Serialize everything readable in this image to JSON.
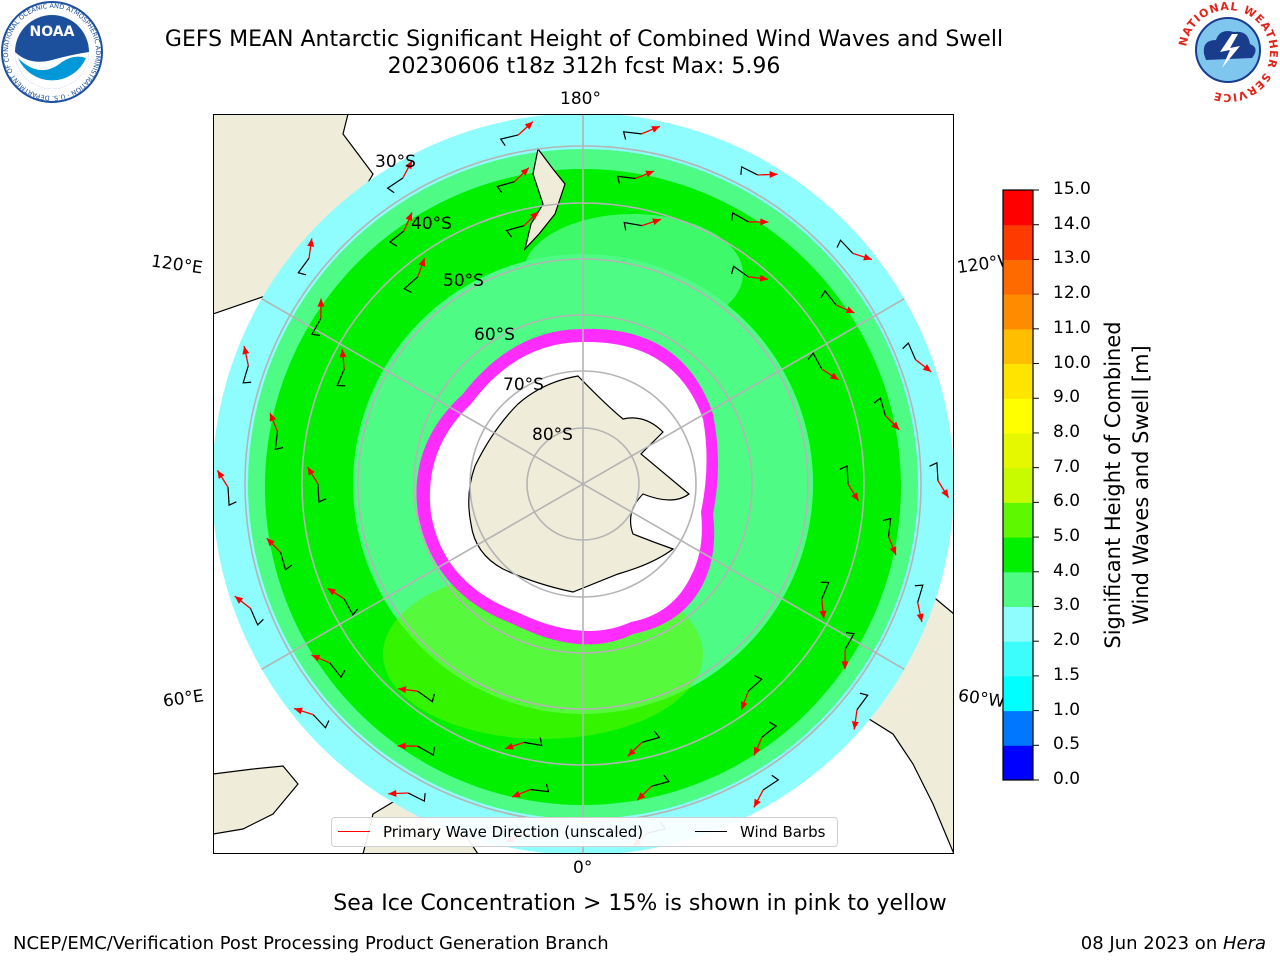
{
  "header": {
    "title_line1": "GEFS MEAN Antarctic Significant Height of Combined Wind Waves and Swell",
    "title_line2": "20230606 t18z 312h fcst   Max: 5.96"
  },
  "logos": {
    "left": {
      "text": "NOAA",
      "ring_text": "NATIONAL OCEANIC AND ATMOSPHERIC ADMINISTRATION · U.S. DEPARTMENT OF COMMERCE",
      "color": "#1c4f9c"
    },
    "right": {
      "ring_text": "NATIONAL WEATHER SERVICE",
      "color": "#e2231a"
    }
  },
  "map": {
    "lon_labels": [
      "180°",
      "120°E",
      "120°W",
      "60°E",
      "60°W",
      "0°"
    ],
    "lat_labels": [
      "30°S",
      "40°S",
      "50°S",
      "60°S",
      "70°S",
      "80°S"
    ],
    "colors": {
      "land": "#efecda",
      "ocean_low": "#8ffdfd",
      "ocean_mid": "#4dfb85",
      "ocean_high": "#00f000",
      "band_6": "#5ef800",
      "ice": "#ff2cff",
      "graticule": "#b4b4b4",
      "arrow": "#ff0000",
      "barb": "#000000"
    }
  },
  "colorbar": {
    "title_line1": "Significant Height of Combined",
    "title_line2": "Wind Waves and Swell [m]",
    "ticks": [
      "0.0",
      "0.5",
      "1.0",
      "1.5",
      "2.0",
      "3.0",
      "4.0",
      "5.0",
      "6.0",
      "7.0",
      "8.0",
      "9.0",
      "10.0",
      "11.0",
      "12.0",
      "13.0",
      "14.0",
      "15.0"
    ],
    "colors": [
      "#0000ff",
      "#0077ff",
      "#00ffff",
      "#3dfcfc",
      "#8ffdfd",
      "#4dfb85",
      "#00f000",
      "#5ef800",
      "#c8fa00",
      "#e6f800",
      "#ffff00",
      "#ffe400",
      "#ffbe00",
      "#ff8c00",
      "#ff6a00",
      "#ff3a00",
      "#ff0000"
    ]
  },
  "legend": {
    "wave_label": "Primary Wave Direction (unscaled)",
    "barb_label": "Wind Barbs"
  },
  "subtitle": "Sea Ice Concentration > 15% is shown in pink to yellow",
  "footer": {
    "left": "NCEP/EMC/Verification Post Processing Product Generation Branch",
    "date": "08 Jun 2023 on ",
    "machine": "Hera"
  }
}
